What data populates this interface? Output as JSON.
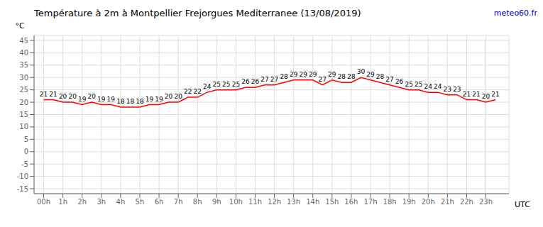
{
  "chart_data": {
    "type": "line",
    "title": "Température à 2m à Montpellier Frejorgues Mediterranee (13/08/2019)",
    "ylabel": "°C",
    "annotations": [
      "UTC",
      "meteo60.fr"
    ],
    "x": [
      0,
      0.5,
      1,
      1.5,
      2,
      2.5,
      3,
      3.5,
      4,
      4.5,
      5,
      5.5,
      6,
      6.5,
      7,
      7.5,
      8,
      8.5,
      9,
      9.5,
      10,
      10.5,
      11,
      11.5,
      12,
      12.5,
      13,
      13.5,
      14,
      14.5,
      15,
      15.5,
      16,
      16.5,
      17,
      17.5,
      18,
      18.5,
      19,
      19.5,
      20,
      20.5,
      21,
      21.5,
      22,
      22.5,
      23,
      23.5
    ],
    "values": [
      21,
      21,
      20,
      20,
      19,
      20,
      19,
      19,
      18,
      18,
      18,
      19,
      19,
      20,
      20,
      22,
      22,
      24,
      25,
      25,
      25,
      26,
      26,
      27,
      27,
      28,
      29,
      29,
      29,
      27,
      29,
      28,
      28,
      30,
      29,
      28,
      27,
      26,
      25,
      25,
      24,
      24,
      23,
      23,
      21,
      21,
      20,
      21
    ],
    "color": "#ff0000",
    "xlim": [
      -0.5,
      24.2
    ],
    "xticks": [
      {
        "value": 0,
        "label": "00h"
      },
      {
        "value": 1,
        "label": "1h"
      },
      {
        "value": 2,
        "label": "2h"
      },
      {
        "value": 3,
        "label": "3h"
      },
      {
        "value": 4,
        "label": "4h"
      },
      {
        "value": 5,
        "label": "5h"
      },
      {
        "value": 6,
        "label": "6h"
      },
      {
        "value": 7,
        "label": "7h"
      },
      {
        "value": 8,
        "label": "8h"
      },
      {
        "value": 9,
        "label": "9h"
      },
      {
        "value": 10,
        "label": "10h"
      },
      {
        "value": 11,
        "label": "11h"
      },
      {
        "value": 12,
        "label": "12h"
      },
      {
        "value": 13,
        "label": "13h"
      },
      {
        "value": 14,
        "label": "14h"
      },
      {
        "value": 15,
        "label": "15h"
      },
      {
        "value": 16,
        "label": "16h"
      },
      {
        "value": 17,
        "label": "17h"
      },
      {
        "value": 18,
        "label": "18h"
      },
      {
        "value": 19,
        "label": "19h"
      },
      {
        "value": 20,
        "label": "20h"
      },
      {
        "value": 21,
        "label": "21h"
      },
      {
        "value": 22,
        "label": "22h"
      },
      {
        "value": 23,
        "label": "23h"
      }
    ],
    "ylim": [
      -17,
      47
    ],
    "yticks": [
      -15,
      -10,
      -5,
      0,
      5,
      10,
      15,
      20,
      25,
      30,
      35,
      40,
      45
    ],
    "grid": true,
    "data_labels": true
  }
}
